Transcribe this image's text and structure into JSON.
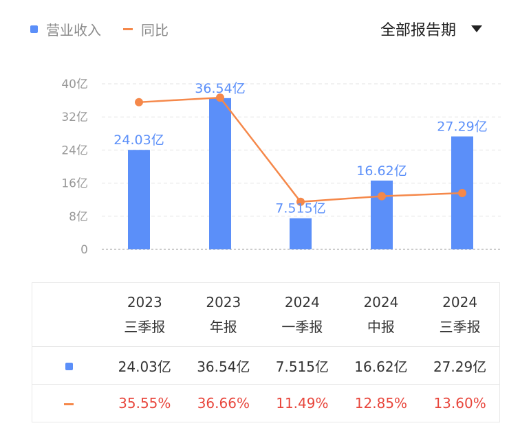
{
  "legend": {
    "bar": "营业收入",
    "line": "同比"
  },
  "period_select": "全部报告期",
  "colors": {
    "bar": "#5b8ff9",
    "line": "#f5884a",
    "pct": "#e8463c"
  },
  "chart_data": {
    "type": "bar+line",
    "categories": [
      [
        "2023",
        "三季报"
      ],
      [
        "2023",
        "年报"
      ],
      [
        "2024",
        "一季报"
      ],
      [
        "2024",
        "中报"
      ],
      [
        "2024",
        "三季报"
      ]
    ],
    "yticks": [
      "0",
      "8亿",
      "16亿",
      "24亿",
      "32亿",
      "40亿"
    ],
    "ylim": [
      0,
      40
    ],
    "series": [
      {
        "name": "营业收入",
        "type": "bar",
        "values": [
          24.03,
          36.54,
          7.515,
          16.62,
          27.29
        ],
        "labels": [
          "24.03亿",
          "36.54亿",
          "7.515亿",
          "16.62亿",
          "27.29亿"
        ]
      },
      {
        "name": "同比",
        "type": "line",
        "values": [
          35.55,
          36.66,
          11.49,
          12.85,
          13.6
        ],
        "labels": [
          "35.55%",
          "36.66%",
          "11.49%",
          "12.85%",
          "13.60%"
        ]
      }
    ]
  }
}
